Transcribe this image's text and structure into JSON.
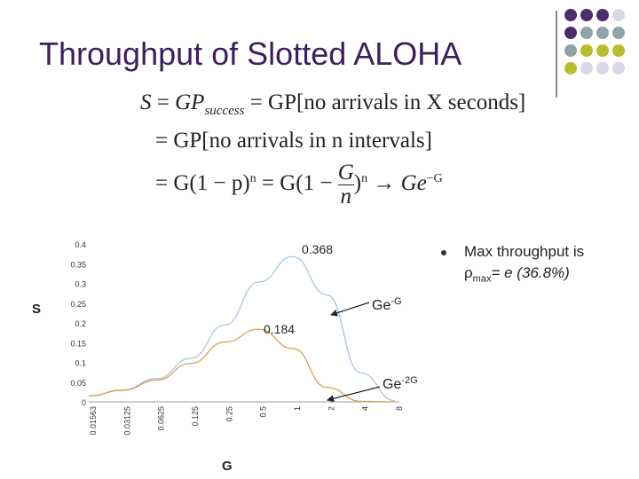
{
  "slide": {
    "title": "Throughput of Slotted ALOHA",
    "colors": {
      "title": "#3d1f5c",
      "dark_purple": "#4a2d6b",
      "teal": "#8fa3a6",
      "olive": "#b8bd2e",
      "lavender": "#d8d8e6"
    },
    "decor_icon": "dot-grid-icon"
  },
  "equations": {
    "line1": {
      "lhs": "S",
      "eq": "=",
      "gp": "GP",
      "sub": "success",
      "rest": "= GP[no arrivals in X seconds]"
    },
    "line2": {
      "text": "= GP[no arrivals in n intervals]"
    },
    "line3": {
      "a": "= G(1 − p)",
      "a_exp": "n",
      "b": "= G(1 −",
      "frac_num": "G",
      "frac_den": "n",
      "c": ")",
      "c_exp": "n",
      "arrow": "→",
      "d": "Ge",
      "d_exp": "−G"
    }
  },
  "chart_data": {
    "type": "line",
    "xlabel": "G",
    "ylabel": "S",
    "ylim": [
      0,
      0.4
    ],
    "y_ticks": [
      "0",
      "0.05",
      "0.1",
      "0.15",
      "0.2",
      "0.25",
      "0.3",
      "0.35",
      "0.4"
    ],
    "x": [
      0.01563,
      0.03125,
      0.0625,
      0.125,
      0.25,
      0.5,
      1,
      2,
      4,
      8
    ],
    "x_ticks": [
      "0.01563",
      "0.03125",
      "0.0625",
      "0.125",
      "0.25",
      "0.5",
      "1",
      "2",
      "4",
      "8"
    ],
    "series": [
      {
        "name": "Ge-G",
        "color": "#a9c6e0",
        "values": [
          0.0154,
          0.0303,
          0.0588,
          0.1103,
          0.1947,
          0.3033,
          0.3679,
          0.2707,
          0.0733,
          0.0027
        ]
      },
      {
        "name": "Ge-2G",
        "color": "#d3a552",
        "values": [
          0.0151,
          0.0293,
          0.0551,
          0.0974,
          0.1516,
          0.1839,
          0.1353,
          0.0366,
          0.0013,
          0.0
        ]
      }
    ],
    "annotations": {
      "peak1": "0.368",
      "peak2": "0.184",
      "label1_base": "Ge",
      "label1_exp": "-G",
      "label2_base": "Ge",
      "label2_exp": "-2G"
    }
  },
  "note": {
    "line1": "Max throughput is",
    "rho": "ρ",
    "sub": "max",
    "rest": "= e (36.8%)"
  }
}
